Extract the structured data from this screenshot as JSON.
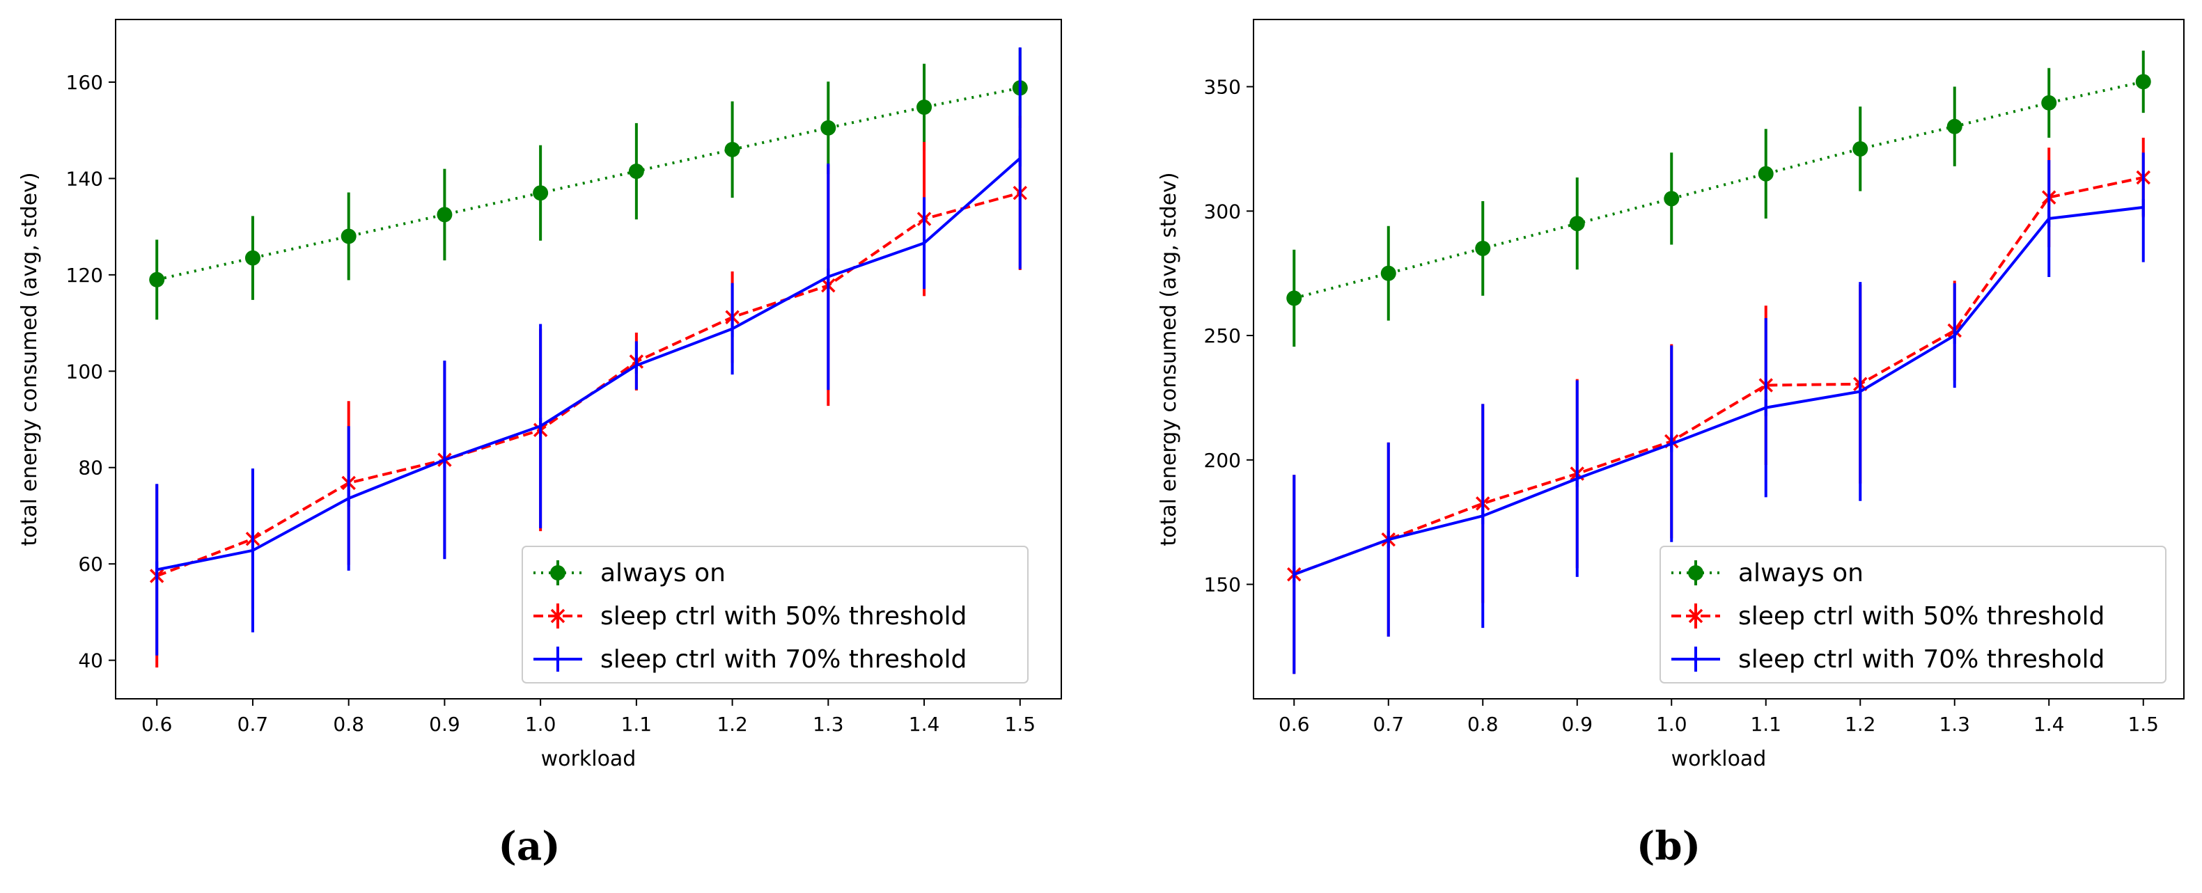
{
  "chart_data": [
    {
      "type": "line",
      "panel_label": "(a)",
      "xlabel": "workload",
      "ylabel": "total energy consumed (avg, stdev)",
      "x": [
        0.6,
        0.7,
        0.8,
        0.9,
        1.0,
        1.1,
        1.2,
        1.3,
        1.4,
        1.5
      ],
      "x_tick_labels": [
        "0.6",
        "0.7",
        "0.8",
        "0.9",
        "1.0",
        "1.1",
        "1.2",
        "1.3",
        "1.4",
        "1.5"
      ],
      "xlim": [
        0.557,
        1.543
      ],
      "ylim": [
        32,
        173
      ],
      "y_ticks": [
        40,
        60,
        80,
        100,
        120,
        140,
        160
      ],
      "legend_position": "lower-right",
      "series": [
        {
          "name": "always on",
          "color": "#008000",
          "style": "dotted",
          "marker": "circle",
          "values": [
            119,
            123.5,
            128,
            132.5,
            137,
            141.5,
            146,
            150.5,
            154.8,
            158.8
          ],
          "errors": [
            8.3,
            8.7,
            9.1,
            9.5,
            9.9,
            10.0,
            10.0,
            9.6,
            9.0,
            8.3
          ]
        },
        {
          "name": "sleep ctrl with 50% threshold",
          "color": "#ff0000",
          "style": "dashed",
          "marker": "x",
          "values": [
            57.5,
            65.2,
            76.8,
            81.6,
            87.8,
            102,
            111.2,
            117.8,
            131.6,
            137
          ],
          "errors": [
            19,
            14.5,
            17,
            20.5,
            21,
            6,
            9.5,
            25,
            16,
            16
          ]
        },
        {
          "name": "sleep ctrl with 70% threshold",
          "color": "#0000ff",
          "style": "solid",
          "marker": "vline",
          "values": [
            58.8,
            62.8,
            73.6,
            81.6,
            88.6,
            101.2,
            108.8,
            119.6,
            126.6,
            144.2
          ],
          "errors": [
            17.8,
            17,
            15,
            20.6,
            21.2,
            5,
            9.5,
            23.5,
            9.5,
            23
          ]
        }
      ]
    },
    {
      "type": "line",
      "panel_label": "(b)",
      "xlabel": "workload",
      "ylabel": "total energy consumed (avg, stdev)",
      "x": [
        0.6,
        0.7,
        0.8,
        0.9,
        1.0,
        1.1,
        1.2,
        1.3,
        1.4,
        1.5
      ],
      "x_tick_labels": [
        "0.6",
        "0.7",
        "0.8",
        "0.9",
        "1.0",
        "1.1",
        "1.2",
        "1.3",
        "1.4",
        "1.5"
      ],
      "xlim": [
        0.557,
        1.543
      ],
      "ylim": [
        104,
        377
      ],
      "y_ticks": [
        150,
        200,
        250,
        300,
        350
      ],
      "legend_position": "lower-right",
      "series": [
        {
          "name": "always on",
          "color": "#008000",
          "style": "dotted",
          "marker": "circle",
          "values": [
            265,
            275,
            285,
            295,
            305,
            315,
            325,
            334,
            343.5,
            352
          ],
          "errors": [
            19.5,
            19,
            19,
            18.5,
            18.5,
            18,
            17,
            16,
            14,
            12.5
          ]
        },
        {
          "name": "sleep ctrl with 50% threshold",
          "color": "#ff0000",
          "style": "dashed",
          "marker": "x",
          "values": [
            154,
            168,
            182.5,
            194.5,
            207.5,
            230,
            230.5,
            252,
            305.5,
            313.5
          ],
          "errors": [
            40,
            39,
            40,
            38,
            39,
            32,
            40,
            20,
            20,
            16
          ]
        },
        {
          "name": "sleep ctrl with 70% threshold",
          "color": "#0000ff",
          "style": "solid",
          "marker": "vline",
          "values": [
            154,
            168,
            177.5,
            192.5,
            206.5,
            221,
            227.5,
            250,
            297,
            301.5
          ],
          "errors": [
            40,
            39,
            45,
            39.5,
            39.5,
            36,
            44,
            21,
            23.5,
            22
          ]
        }
      ]
    }
  ]
}
